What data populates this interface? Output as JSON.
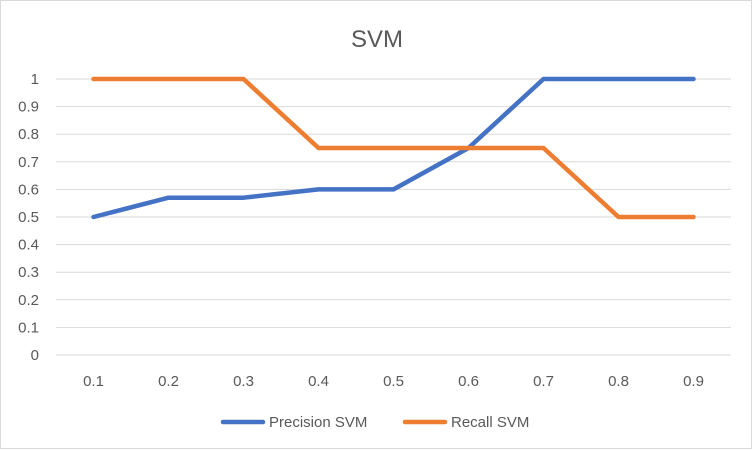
{
  "chart_data": {
    "type": "line",
    "title": "SVM",
    "xlabel": "",
    "ylabel": "",
    "categories": [
      "0.1",
      "0.2",
      "0.3",
      "0.4",
      "0.5",
      "0.6",
      "0.7",
      "0.8",
      "0.9"
    ],
    "y_ticks": [
      "0",
      "0.1",
      "0.2",
      "0.3",
      "0.4",
      "0.5",
      "0.6",
      "0.7",
      "0.8",
      "0.9",
      "1"
    ],
    "ylim": [
      0,
      1
    ],
    "grid": true,
    "legend_position": "bottom",
    "series": [
      {
        "name": "Precision SVM",
        "color": "#4472C4",
        "values": [
          0.5,
          0.57,
          0.57,
          0.6,
          0.6,
          0.75,
          1.0,
          1.0,
          1.0
        ]
      },
      {
        "name": "Recall SVM",
        "color": "#ED7D31",
        "values": [
          1.0,
          1.0,
          1.0,
          0.75,
          0.75,
          0.75,
          0.75,
          0.5,
          0.5
        ]
      }
    ]
  }
}
